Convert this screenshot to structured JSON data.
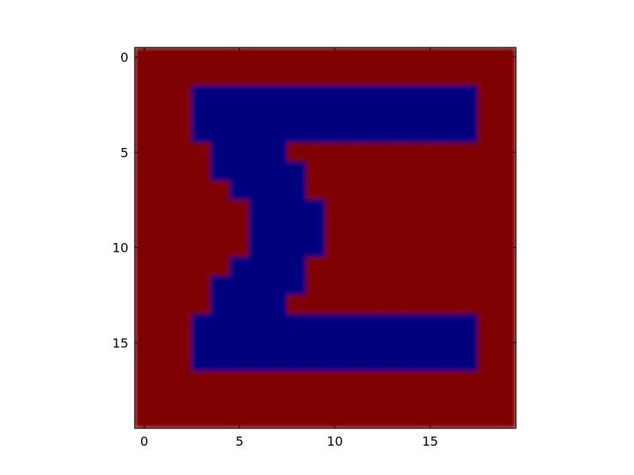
{
  "chart_data": {
    "type": "heatmap",
    "title": "",
    "xlabel": "",
    "ylabel": "",
    "x_ticks": [
      0,
      5,
      10,
      15
    ],
    "y_ticks": [
      0,
      5,
      10,
      15
    ],
    "x_tick_labels": [
      "0",
      "5",
      "10",
      "15"
    ],
    "y_tick_labels": [
      "0",
      "5",
      "10",
      "15"
    ],
    "xlim": [
      -0.5,
      19.5
    ],
    "ylim": [
      19.5,
      -0.5
    ],
    "grid": false,
    "colormap": "jet",
    "colors": {
      "low": "#00007f",
      "high": "#7f0000"
    },
    "shape": [
      20,
      20
    ],
    "values": [
      [
        1,
        1,
        1,
        1,
        1,
        1,
        1,
        1,
        1,
        1,
        1,
        1,
        1,
        1,
        1,
        1,
        1,
        1,
        1,
        1
      ],
      [
        1,
        1,
        1,
        1,
        1,
        1,
        1,
        1,
        1,
        1,
        1,
        1,
        1,
        1,
        1,
        1,
        1,
        1,
        1,
        1
      ],
      [
        1,
        1,
        1,
        0,
        0,
        0,
        0,
        0,
        0,
        0,
        0,
        0,
        0,
        0,
        0,
        0,
        0,
        0,
        1,
        1
      ],
      [
        1,
        1,
        1,
        0,
        0,
        0,
        0,
        0,
        0,
        0,
        0,
        0,
        0,
        0,
        0,
        0,
        0,
        0,
        1,
        1
      ],
      [
        1,
        1,
        1,
        0,
        0,
        0,
        0,
        0,
        0,
        0,
        0,
        0,
        0,
        0,
        0,
        0,
        0,
        0,
        1,
        1
      ],
      [
        1,
        1,
        1,
        1,
        0,
        0,
        0,
        0,
        1,
        1,
        1,
        1,
        1,
        1,
        1,
        1,
        1,
        1,
        1,
        1
      ],
      [
        1,
        1,
        1,
        1,
        0,
        0,
        0,
        0,
        0,
        1,
        1,
        1,
        1,
        1,
        1,
        1,
        1,
        1,
        1,
        1
      ],
      [
        1,
        1,
        1,
        1,
        1,
        0,
        0,
        0,
        0,
        1,
        1,
        1,
        1,
        1,
        1,
        1,
        1,
        1,
        1,
        1
      ],
      [
        1,
        1,
        1,
        1,
        1,
        1,
        0,
        0,
        0,
        0,
        1,
        1,
        1,
        1,
        1,
        1,
        1,
        1,
        1,
        1
      ],
      [
        1,
        1,
        1,
        1,
        1,
        1,
        0,
        0,
        0,
        0,
        1,
        1,
        1,
        1,
        1,
        1,
        1,
        1,
        1,
        1
      ],
      [
        1,
        1,
        1,
        1,
        1,
        1,
        0,
        0,
        0,
        0,
        1,
        1,
        1,
        1,
        1,
        1,
        1,
        1,
        1,
        1
      ],
      [
        1,
        1,
        1,
        1,
        1,
        0,
        0,
        0,
        0,
        1,
        1,
        1,
        1,
        1,
        1,
        1,
        1,
        1,
        1,
        1
      ],
      [
        1,
        1,
        1,
        1,
        0,
        0,
        0,
        0,
        0,
        1,
        1,
        1,
        1,
        1,
        1,
        1,
        1,
        1,
        1,
        1
      ],
      [
        1,
        1,
        1,
        1,
        0,
        0,
        0,
        0,
        1,
        1,
        1,
        1,
        1,
        1,
        1,
        1,
        1,
        1,
        1,
        1
      ],
      [
        1,
        1,
        1,
        0,
        0,
        0,
        0,
        0,
        0,
        0,
        0,
        0,
        0,
        0,
        0,
        0,
        0,
        0,
        1,
        1
      ],
      [
        1,
        1,
        1,
        0,
        0,
        0,
        0,
        0,
        0,
        0,
        0,
        0,
        0,
        0,
        0,
        0,
        0,
        0,
        1,
        1
      ],
      [
        1,
        1,
        1,
        0,
        0,
        0,
        0,
        0,
        0,
        0,
        0,
        0,
        0,
        0,
        0,
        0,
        0,
        0,
        1,
        1
      ],
      [
        1,
        1,
        1,
        1,
        1,
        1,
        1,
        1,
        1,
        1,
        1,
        1,
        1,
        1,
        1,
        1,
        1,
        1,
        1,
        1
      ],
      [
        1,
        1,
        1,
        1,
        1,
        1,
        1,
        1,
        1,
        1,
        1,
        1,
        1,
        1,
        1,
        1,
        1,
        1,
        1,
        1
      ],
      [
        1,
        1,
        1,
        1,
        1,
        1,
        1,
        1,
        1,
        1,
        1,
        1,
        1,
        1,
        1,
        1,
        1,
        1,
        1,
        1
      ]
    ]
  }
}
